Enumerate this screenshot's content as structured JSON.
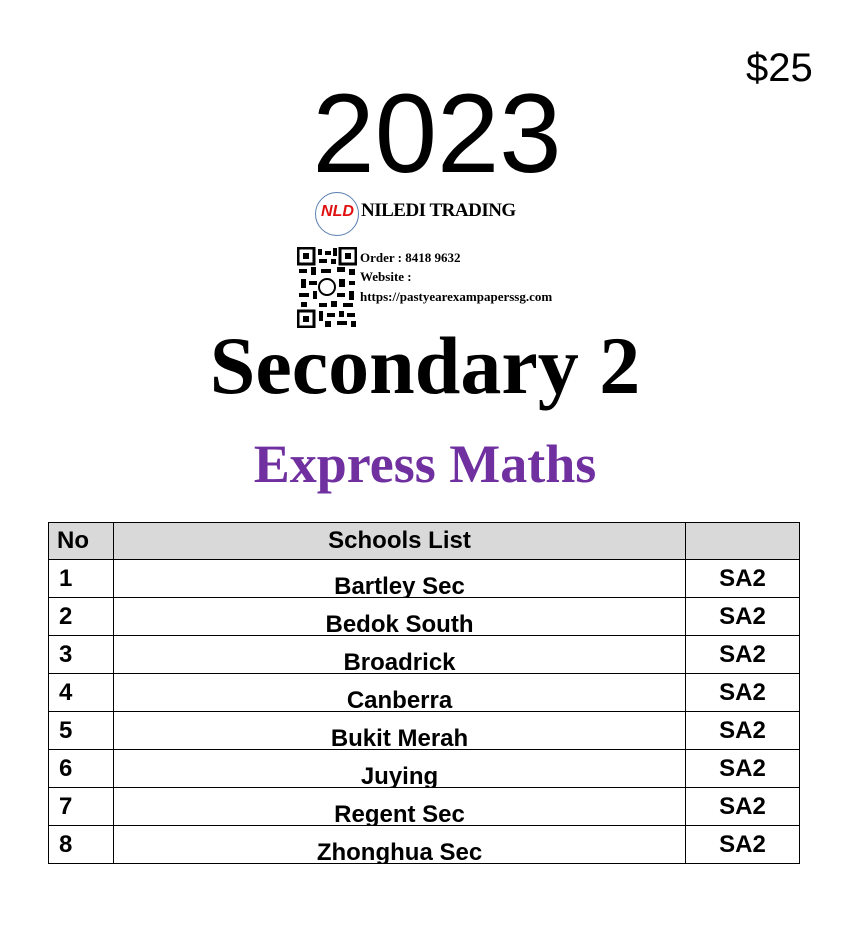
{
  "price": "$25",
  "year": "2023",
  "brand": {
    "logo_text": "NLD",
    "name": "NILEDI TRADING",
    "order": "Order : 8418 9632",
    "website_label": "Website :",
    "website_url": "https://pastyearexampaperssg.com"
  },
  "level": "Secondary 2",
  "subject": "Express Maths",
  "colors": {
    "subject": "#7030a0",
    "header_bg": "#d9d9d9",
    "logo_text": "#e01010"
  },
  "table": {
    "headers": [
      "No",
      "Schools List",
      ""
    ],
    "rows": [
      {
        "no": "1",
        "school": "Bartley Sec",
        "exam": "SA2"
      },
      {
        "no": "2",
        "school": "Bedok South",
        "exam": "SA2"
      },
      {
        "no": "3",
        "school": "Broadrick",
        "exam": "SA2"
      },
      {
        "no": "4",
        "school": "Canberra",
        "exam": "SA2"
      },
      {
        "no": "5",
        "school": "Bukit Merah",
        "exam": "SA2"
      },
      {
        "no": "6",
        "school": "Juying",
        "exam": "SA2"
      },
      {
        "no": "7",
        "school": "Regent Sec",
        "exam": "SA2"
      },
      {
        "no": "8",
        "school": "Zhonghua Sec",
        "exam": "SA2"
      }
    ]
  }
}
